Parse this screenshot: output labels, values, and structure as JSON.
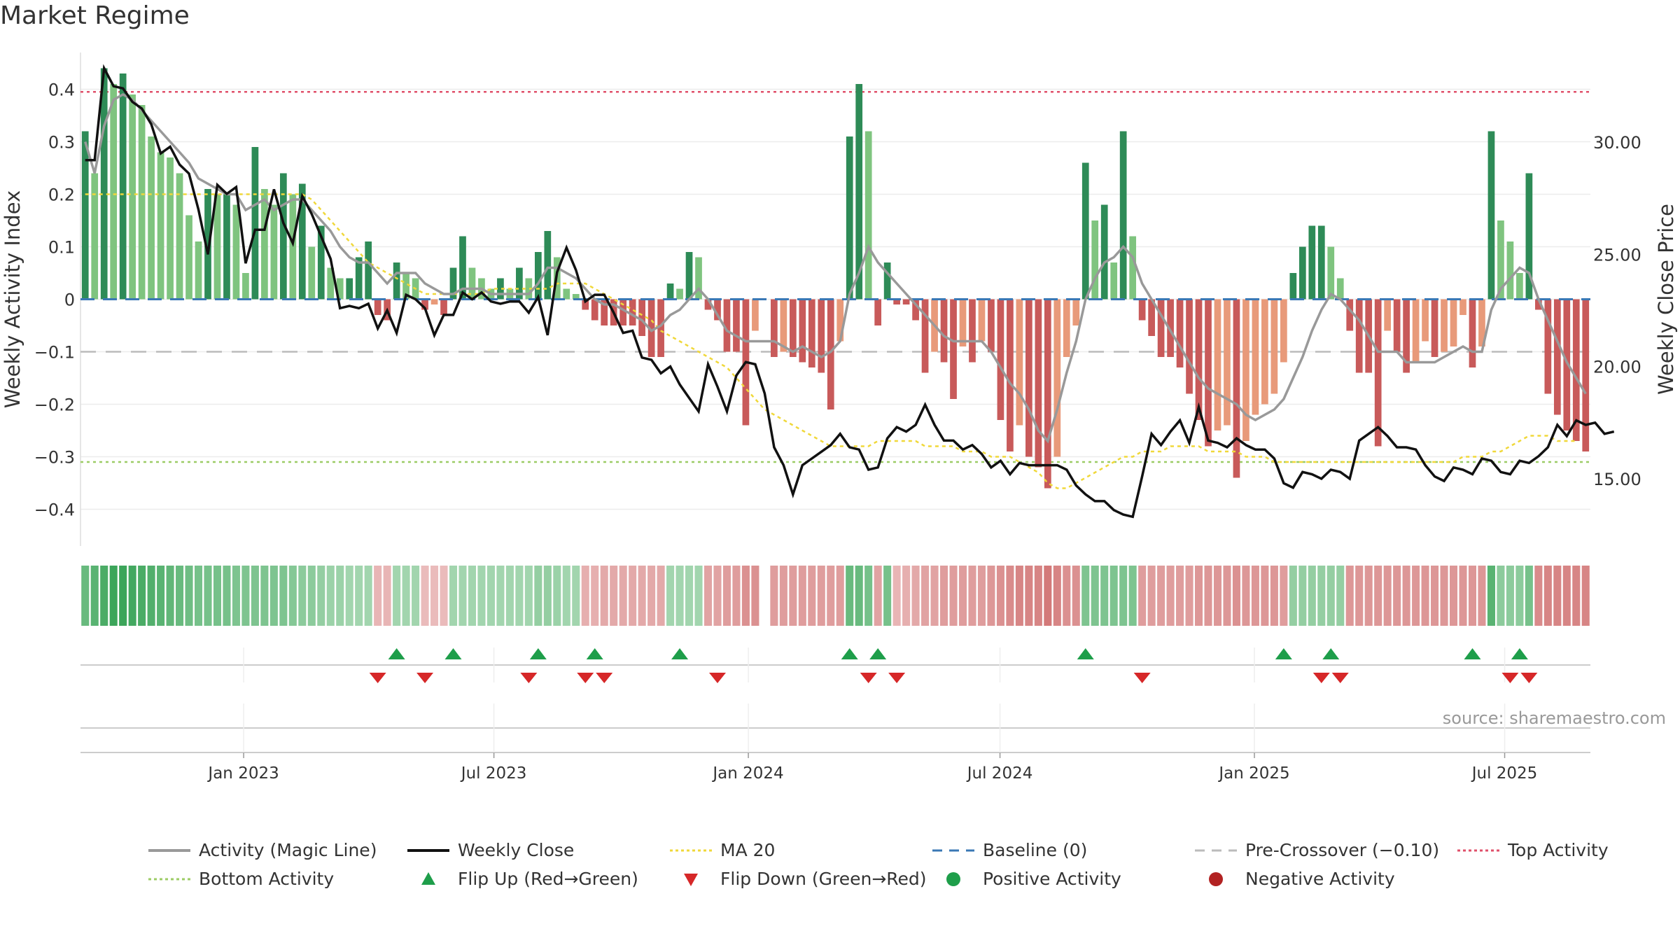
{
  "title": "Market Regime",
  "source": "source: sharemaestro.com",
  "colors": {
    "pos_dark": "#2e8b57",
    "pos_light": "#7fc47f",
    "neg_dark": "#c85a5a",
    "neg_light": "#e89a7a",
    "magic": "#999999",
    "close": "#111111",
    "ma20": "#f0d83a",
    "baseline": "#3a78b5",
    "precross": "#bbbbbb",
    "top": "#e0506a",
    "bottom": "#9ccc65",
    "flip_up": "#1e9e4a",
    "flip_down": "#d62728"
  },
  "chart_data": {
    "type": "bar",
    "title": "Market Regime",
    "xlabel": "",
    "ylabel": "Weekly Activity Index",
    "y2label": "Weekly Close Price",
    "ylim": [
      -0.47,
      0.47
    ],
    "y2lim": [
      12.0,
      34.0
    ],
    "yticks": [
      "0.4",
      "0.3",
      "0.2",
      "0.1",
      "0",
      "−0.1",
      "−0.2",
      "−0.3",
      "−0.4"
    ],
    "ytick_values": [
      0.4,
      0.3,
      0.2,
      0.1,
      0,
      -0.1,
      -0.2,
      -0.3,
      -0.4
    ],
    "y2ticks": [
      "30.00",
      "25.00",
      "20.00",
      "15.00"
    ],
    "y2tick_values": [
      30,
      25,
      20,
      15
    ],
    "xticks": [
      "Jan 2023",
      "Jul 2023",
      "Jan 2024",
      "Jul 2024",
      "Jan 2025",
      "Jul 2025"
    ],
    "xtick_dates": [
      "2023-01-01",
      "2023-07-01",
      "2024-01-01",
      "2024-07-01",
      "2025-01-01",
      "2025-07-01"
    ],
    "start_date": "2022-09-05",
    "end_date": "2025-09-01",
    "grid": true,
    "legend_position": "bottom",
    "reference_lines": {
      "top_activity": 0.395,
      "bottom_activity": -0.31,
      "baseline": 0,
      "pre_crossover": -0.1
    },
    "activity": [
      0.32,
      0.24,
      0.44,
      0.41,
      0.43,
      0.39,
      0.37,
      0.31,
      0.28,
      0.27,
      0.24,
      0.16,
      0.11,
      0.21,
      0.2,
      0.2,
      0.18,
      0.05,
      0.29,
      0.21,
      0.18,
      0.24,
      0.2,
      0.22,
      0.1,
      0.14,
      0.06,
      0.04,
      0.04,
      0.08,
      0.11,
      -0.03,
      -0.04,
      0.07,
      0.05,
      0.04,
      -0.02,
      -0.01,
      -0.03,
      0.06,
      0.12,
      0.06,
      0.04,
      0.02,
      0.04,
      0.02,
      0.06,
      0.04,
      0.09,
      0.13,
      0.08,
      0.02,
      0.01,
      -0.02,
      -0.04,
      -0.05,
      -0.05,
      -0.05,
      -0.05,
      -0.07,
      -0.11,
      -0.11,
      0.03,
      0.02,
      0.09,
      0.08,
      -0.02,
      -0.04,
      -0.1,
      -0.1,
      -0.24,
      -0.06,
      null,
      -0.11,
      -0.1,
      -0.11,
      -0.12,
      -0.13,
      -0.14,
      -0.21,
      -0.08,
      0.31,
      0.41,
      0.32,
      -0.05,
      0.07,
      -0.01,
      -0.01,
      -0.04,
      -0.14,
      -0.1,
      -0.12,
      -0.19,
      -0.09,
      -0.12,
      -0.08,
      -0.1,
      -0.23,
      -0.29,
      -0.24,
      -0.3,
      -0.32,
      -0.36,
      -0.3,
      -0.11,
      -0.05,
      0.26,
      0.15,
      0.18,
      0.07,
      0.32,
      0.12,
      -0.04,
      -0.07,
      -0.11,
      -0.11,
      -0.13,
      -0.18,
      -0.23,
      -0.28,
      -0.25,
      -0.24,
      -0.34,
      -0.27,
      -0.22,
      -0.2,
      -0.18,
      -0.12,
      0.05,
      0.1,
      0.14,
      0.14,
      0.1,
      0.04,
      -0.06,
      -0.14,
      -0.14,
      -0.28,
      -0.06,
      -0.1,
      -0.14,
      -0.12,
      -0.08,
      -0.11,
      -0.1,
      -0.09,
      -0.03,
      -0.13,
      -0.09,
      0.32,
      0.15,
      0.11,
      0.05,
      0.24,
      -0.02,
      -0.18,
      -0.22,
      -0.25,
      -0.27,
      -0.29
    ],
    "magic_line": [
      0.3,
      0.24,
      0.33,
      0.38,
      0.39,
      0.38,
      0.36,
      0.34,
      0.32,
      0.3,
      0.28,
      0.26,
      0.23,
      0.22,
      0.21,
      0.2,
      0.2,
      0.17,
      0.18,
      0.19,
      0.17,
      0.18,
      0.19,
      0.19,
      0.17,
      0.15,
      0.13,
      0.1,
      0.08,
      0.07,
      0.07,
      0.05,
      0.03,
      0.05,
      0.05,
      0.05,
      0.03,
      0.02,
      0.01,
      0.01,
      0.02,
      0.02,
      0.02,
      0.01,
      0.01,
      0.01,
      0.01,
      0.01,
      0.03,
      0.06,
      0.06,
      0.05,
      0.04,
      0.02,
      0.0,
      -0.01,
      -0.01,
      -0.02,
      -0.03,
      -0.04,
      -0.06,
      -0.05,
      -0.03,
      -0.02,
      0.0,
      0.02,
      0.0,
      -0.03,
      -0.06,
      -0.07,
      -0.08,
      -0.08,
      -0.08,
      -0.08,
      -0.09,
      -0.1,
      -0.09,
      -0.1,
      -0.11,
      -0.1,
      -0.08,
      0.01,
      0.05,
      0.1,
      0.07,
      0.05,
      0.03,
      0.01,
      -0.01,
      -0.03,
      -0.05,
      -0.07,
      -0.08,
      -0.08,
      -0.08,
      -0.08,
      -0.1,
      -0.13,
      -0.16,
      -0.18,
      -0.21,
      -0.25,
      -0.27,
      -0.21,
      -0.14,
      -0.08,
      -0.0,
      0.04,
      0.07,
      0.08,
      0.1,
      0.08,
      0.03,
      0.0,
      -0.03,
      -0.06,
      -0.09,
      -0.12,
      -0.15,
      -0.17,
      -0.18,
      -0.19,
      -0.2,
      -0.22,
      -0.23,
      -0.22,
      -0.21,
      -0.19,
      -0.15,
      -0.11,
      -0.06,
      -0.02,
      0.01,
      0.0,
      -0.02,
      -0.04,
      -0.07,
      -0.1,
      -0.1,
      -0.1,
      -0.12,
      -0.12,
      -0.12,
      -0.12,
      -0.11,
      -0.1,
      -0.09,
      -0.1,
      -0.1,
      -0.02,
      0.02,
      0.04,
      0.06,
      0.05,
      0.0,
      -0.04,
      -0.08,
      -0.12,
      -0.15,
      -0.18
    ],
    "ma20": [
      0.2,
      0.2,
      0.2,
      0.2,
      0.2,
      0.2,
      0.2,
      0.2,
      0.2,
      0.2,
      0.2,
      0.2,
      0.2,
      0.2,
      0.2,
      0.2,
      0.2,
      0.2,
      0.2,
      0.2,
      0.2,
      0.2,
      0.2,
      0.2,
      0.19,
      0.17,
      0.15,
      0.13,
      0.11,
      0.09,
      0.07,
      0.06,
      0.05,
      0.04,
      0.03,
      0.02,
      0.01,
      0.01,
      0.01,
      0.01,
      0.01,
      0.01,
      0.01,
      0.02,
      0.02,
      0.02,
      0.02,
      0.02,
      0.02,
      0.02,
      0.03,
      0.03,
      0.03,
      0.03,
      0.02,
      0.01,
      0.0,
      -0.01,
      -0.02,
      -0.03,
      -0.04,
      -0.06,
      -0.07,
      -0.08,
      -0.09,
      -0.1,
      -0.11,
      -0.12,
      -0.13,
      -0.15,
      -0.17,
      -0.19,
      -0.21,
      -0.22,
      -0.23,
      -0.24,
      -0.25,
      -0.26,
      -0.27,
      -0.28,
      -0.28,
      -0.28,
      -0.28,
      -0.28,
      -0.27,
      -0.27,
      -0.27,
      -0.27,
      -0.27,
      -0.28,
      -0.28,
      -0.28,
      -0.28,
      -0.29,
      -0.29,
      -0.29,
      -0.3,
      -0.3,
      -0.3,
      -0.31,
      -0.32,
      -0.33,
      -0.35,
      -0.36,
      -0.36,
      -0.35,
      -0.34,
      -0.33,
      -0.32,
      -0.31,
      -0.3,
      -0.3,
      -0.29,
      -0.29,
      -0.29,
      -0.28,
      -0.28,
      -0.28,
      -0.28,
      -0.29,
      -0.29,
      -0.29,
      -0.29,
      -0.3,
      -0.3,
      -0.3,
      -0.31,
      -0.31,
      -0.31,
      -0.31,
      -0.31,
      -0.31,
      -0.31,
      -0.31,
      -0.31,
      -0.31,
      -0.31,
      -0.31,
      -0.31,
      -0.31,
      -0.31,
      -0.31,
      -0.31,
      -0.31,
      -0.31,
      -0.31,
      -0.3,
      -0.3,
      -0.3,
      -0.29,
      -0.29,
      -0.28,
      -0.27,
      -0.26,
      -0.26,
      -0.26,
      -0.27,
      -0.27,
      -0.27
    ],
    "weekly_close": [
      29.2,
      29.2,
      33.3,
      32.5,
      32.4,
      31.8,
      31.5,
      30.8,
      29.5,
      29.8,
      29.0,
      28.6,
      27.0,
      25.0,
      28.1,
      27.7,
      28.0,
      24.6,
      26.1,
      26.1,
      27.9,
      26.4,
      25.5,
      27.6,
      26.8,
      25.8,
      24.8,
      22.6,
      22.7,
      22.6,
      22.8,
      21.7,
      22.5,
      21.5,
      23.2,
      23.0,
      22.6,
      21.4,
      22.3,
      22.3,
      23.3,
      23.0,
      23.3,
      22.9,
      22.8,
      22.9,
      22.9,
      22.4,
      23.1,
      21.4,
      24.2,
      25.3,
      24.3,
      22.9,
      23.2,
      23.2,
      22.4,
      21.5,
      21.6,
      20.4,
      20.3,
      19.7,
      20.0,
      19.2,
      18.6,
      18.0,
      20.1,
      19.1,
      18.0,
      19.6,
      20.2,
      20.1,
      18.8,
      16.4,
      15.6,
      14.3,
      15.6,
      15.9,
      16.2,
      16.5,
      17.0,
      16.4,
      16.3,
      15.4,
      15.5,
      16.8,
      17.3,
      17.1,
      17.4,
      18.3,
      17.4,
      16.7,
      16.7,
      16.3,
      16.5,
      16.1,
      15.5,
      15.8,
      15.2,
      15.7,
      15.6,
      15.6,
      15.6,
      15.6,
      15.4,
      14.7,
      14.3,
      14.0,
      14.0,
      13.6,
      13.4,
      13.3,
      15.1,
      17.0,
      16.5,
      17.1,
      17.6,
      16.6,
      18.2,
      16.7,
      16.6,
      16.4,
      16.8,
      16.5,
      16.3,
      16.3,
      15.9,
      14.8,
      14.6,
      15.3,
      15.2,
      15.0,
      15.4,
      15.3,
      15.0,
      16.7,
      17.0,
      17.3,
      16.9,
      16.4,
      16.4,
      16.3,
      15.6,
      15.1,
      14.9,
      15.5,
      15.4,
      15.2,
      15.9,
      15.8,
      15.3,
      15.2,
      15.8,
      15.7,
      16.0,
      16.4,
      17.4,
      16.9,
      17.6,
      17.4,
      17.5,
      17.0,
      17.1
    ],
    "regime_strip": [
      0.7,
      0.8,
      0.9,
      1.0,
      1.0,
      0.95,
      0.9,
      0.85,
      0.8,
      0.75,
      0.7,
      0.65,
      0.6,
      0.6,
      0.6,
      0.6,
      0.55,
      0.55,
      0.55,
      0.55,
      0.55,
      0.55,
      0.5,
      0.45,
      0.45,
      0.4,
      0.35,
      0.35,
      0.3,
      0.3,
      0.3,
      -0.2,
      -0.2,
      0.3,
      0.3,
      0.3,
      -0.15,
      -0.15,
      -0.15,
      0.3,
      0.3,
      0.3,
      0.3,
      0.3,
      0.3,
      0.3,
      0.3,
      0.3,
      0.4,
      0.4,
      0.35,
      0.3,
      0.3,
      -0.25,
      -0.25,
      -0.3,
      -0.3,
      -0.3,
      -0.3,
      -0.3,
      -0.3,
      -0.3,
      0.3,
      0.3,
      0.3,
      0.3,
      -0.35,
      -0.35,
      -0.4,
      -0.4,
      -0.5,
      -0.5,
      null,
      -0.4,
      -0.4,
      -0.4,
      -0.4,
      -0.4,
      -0.4,
      -0.4,
      -0.4,
      0.7,
      0.7,
      0.6,
      -0.35,
      0.6,
      -0.2,
      -0.25,
      -0.3,
      -0.35,
      -0.35,
      -0.4,
      -0.4,
      -0.4,
      -0.4,
      -0.4,
      -0.45,
      -0.5,
      -0.55,
      -0.6,
      -0.6,
      -0.6,
      -0.7,
      -0.6,
      -0.5,
      -0.5,
      0.55,
      0.55,
      0.55,
      0.55,
      0.55,
      0.55,
      -0.4,
      -0.4,
      -0.4,
      -0.4,
      -0.4,
      -0.4,
      -0.45,
      -0.45,
      -0.45,
      -0.45,
      -0.5,
      -0.45,
      -0.45,
      -0.45,
      -0.45,
      -0.4,
      0.4,
      0.4,
      0.4,
      0.4,
      0.4,
      0.4,
      -0.45,
      -0.45,
      -0.45,
      -0.45,
      -0.45,
      -0.45,
      -0.45,
      -0.45,
      -0.45,
      -0.45,
      -0.45,
      -0.45,
      -0.45,
      -0.45,
      -0.45,
      0.8,
      0.45,
      0.45,
      0.45,
      0.6,
      -0.55,
      -0.6,
      -0.6,
      -0.6,
      -0.6,
      -0.6
    ],
    "flip_up_weeks": [
      33,
      39,
      48,
      54,
      63,
      81,
      84,
      106,
      127,
      132,
      147,
      152
    ],
    "flip_down_weeks": [
      31,
      36,
      47,
      53,
      55,
      67,
      83,
      86,
      112,
      131,
      133,
      151,
      153
    ],
    "series": [
      {
        "name": "Activity (Magic Line)"
      },
      {
        "name": "Weekly Close"
      },
      {
        "name": "MA 20"
      },
      {
        "name": "Baseline (0)"
      },
      {
        "name": "Pre-Crossover (−0.10)"
      },
      {
        "name": "Top Activity"
      },
      {
        "name": "Bottom Activity"
      },
      {
        "name": "Flip Up (Red→Green)"
      },
      {
        "name": "Flip Down (Green→Red)"
      },
      {
        "name": "Positive Activity"
      },
      {
        "name": "Negative Activity"
      }
    ]
  },
  "legend": [
    {
      "label": "Activity (Magic Line)",
      "icon": "grey-solid-line"
    },
    {
      "label": "Weekly Close",
      "icon": "black-solid-line"
    },
    {
      "label": "MA 20",
      "icon": "yellow-dotted-line"
    },
    {
      "label": "Baseline (0)",
      "icon": "blue-dashed-line"
    },
    {
      "label": "Pre-Crossover (−0.10)",
      "icon": "grey-dashed-line"
    },
    {
      "label": "Top Activity",
      "icon": "red-dotted-line"
    },
    {
      "label": "Bottom Activity",
      "icon": "green-dotted-line"
    },
    {
      "label": "Flip Up (Red→Green)",
      "icon": "green-up-triangle"
    },
    {
      "label": "Flip Down (Green→Red)",
      "icon": "red-down-triangle"
    },
    {
      "label": "Positive Activity",
      "icon": "green-dot"
    },
    {
      "label": "Negative Activity",
      "icon": "red-dot"
    }
  ]
}
